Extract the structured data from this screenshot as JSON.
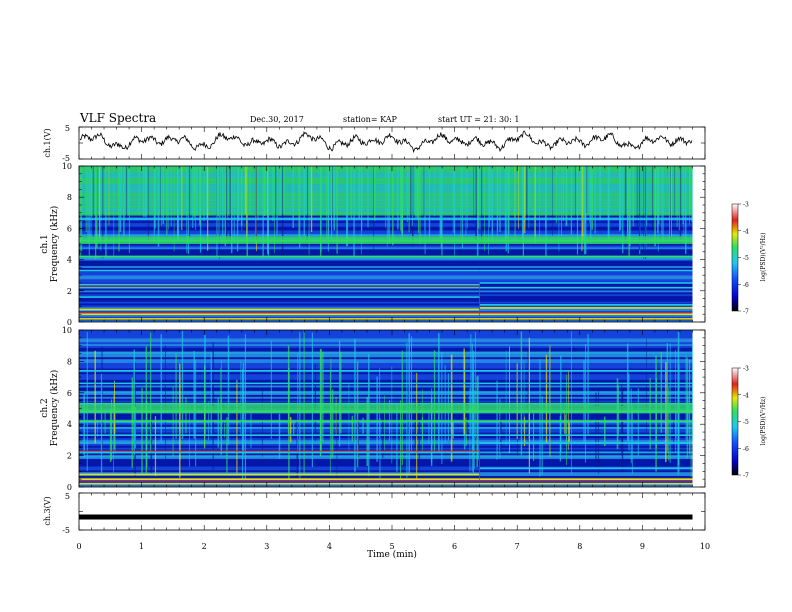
{
  "header": {
    "title": "VLF Spectra",
    "date": "Dec.30, 2017",
    "station": "station= KAP",
    "start_ut": "start  UT =   21: 30: 1"
  },
  "colors": {
    "spec_bg": "#1030c8",
    "spec_dark": "#0010a0",
    "cyan": "#20c8e8",
    "green": "#30e060",
    "yellow": "#e8e000",
    "red": "#e02020",
    "trace": "#000000"
  },
  "chart_data": [
    {
      "type": "line",
      "name": "ch1-waveform",
      "ylabel": "ch.1(V)",
      "ylim": [
        -5,
        5
      ],
      "yticks": [
        "5",
        "-5"
      ],
      "xlim": [
        0,
        10
      ],
      "x_end": 9.8,
      "description_values": "noisy oscillating trace, mostly between -2 and +3 V"
    },
    {
      "type": "heatmap",
      "name": "ch1-spectrogram",
      "label": "ch.1",
      "ylabel": "Frequency  (kHz)",
      "ylim": [
        0,
        10
      ],
      "yticks": [
        "0",
        "2",
        "4",
        "6",
        "8",
        "10"
      ],
      "xlim": [
        0,
        9.8
      ],
      "colorbar": {
        "label": "log(PSD)(V²/Hz)",
        "range": [
          -7,
          -3
        ],
        "ticks": [
          "-3",
          "-4",
          "-5",
          "-6",
          "-7"
        ]
      },
      "transition_min": 6.4,
      "bands_before_khz": [
        0.2,
        0.5,
        0.8,
        1.6,
        2.2,
        2.4,
        3.3,
        4.2,
        5.2,
        6.6
      ],
      "bands_after_khz": [
        0.2,
        0.5,
        0.9,
        1.1,
        2.2,
        2.5,
        3.3,
        4.2,
        5.2,
        6.6
      ]
    },
    {
      "type": "heatmap",
      "name": "ch2-spectrogram",
      "label": "ch.2",
      "ylabel": "Frequency  (kHz)",
      "ylim": [
        0,
        10
      ],
      "yticks": [
        "0",
        "2",
        "4",
        "6",
        "8",
        "10"
      ],
      "xlim": [
        0,
        9.8
      ],
      "colorbar": {
        "label": "log(PSD)(V²/Hz)",
        "range": [
          -7,
          -3
        ],
        "ticks": [
          "-3",
          "-4",
          "-5",
          "-6",
          "-7"
        ]
      },
      "transition_min": 6.4,
      "bands_before_khz": [
        0.2,
        0.5,
        0.8,
        2.2,
        3.3,
        4.2,
        4.8,
        5.3,
        6.6,
        7.4
      ],
      "bands_after_khz": [
        0.2,
        0.5,
        1.2,
        2.8,
        3.3,
        4.2,
        4.8,
        5.3,
        6.6,
        7.4
      ]
    },
    {
      "type": "line",
      "name": "ch3-waveform",
      "ylabel": "ch.3(V)",
      "ylim": [
        -5,
        5
      ],
      "yticks": [
        "5",
        "-5"
      ],
      "xlim": [
        0,
        10
      ],
      "x_end": 9.8,
      "constant_value": -1.5
    }
  ],
  "xaxis": {
    "label": "Time  (min)",
    "ticks": [
      "0",
      "1",
      "2",
      "3",
      "4",
      "5",
      "6",
      "7",
      "8",
      "9",
      "10"
    ],
    "range": [
      0,
      10
    ]
  }
}
